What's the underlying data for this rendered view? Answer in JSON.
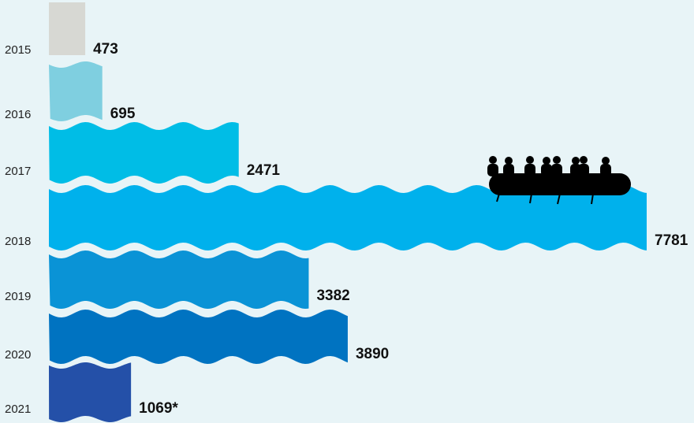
{
  "chart_data": {
    "type": "bar",
    "orientation": "horizontal",
    "categories": [
      "2015",
      "2016",
      "2017",
      "2018",
      "2019",
      "2020",
      "2021"
    ],
    "values": [
      473,
      695,
      2471,
      7781,
      3382,
      3890,
      1069
    ],
    "data_labels": [
      "473",
      "695",
      "2471",
      "7781",
      "3382",
      "3890",
      "1069*"
    ],
    "colors": [
      "#d7d8d3",
      "#7fcfe0",
      "#00bde6",
      "#00b1ec",
      "#0a93d6",
      "#0073c1",
      "#2450a8"
    ],
    "xlim": [
      0,
      7781
    ],
    "grid": false,
    "legend": "none",
    "title": "",
    "xlabel": "",
    "ylabel": "",
    "decoration": "boat-silhouette"
  },
  "background": "#e8f4f7"
}
